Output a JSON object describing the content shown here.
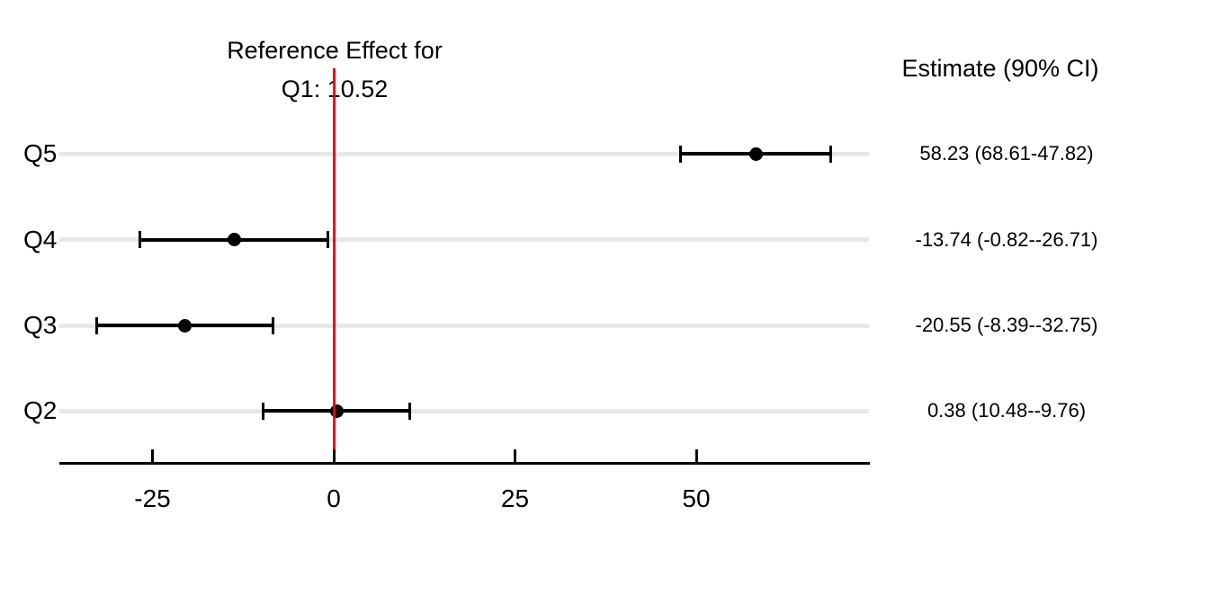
{
  "title": {
    "line1": "Reference Effect for",
    "line2": "Q1: 10.52"
  },
  "right_column_header": "Estimate (90% CI)",
  "chart_data": {
    "type": "forest",
    "title": "Reference Effect for Q1: 10.52",
    "reference": {
      "group": "Q1",
      "effect": 10.52,
      "line_at": 0
    },
    "rows": [
      {
        "label": "Q5",
        "estimate": 58.23,
        "ci_first": 68.61,
        "ci_second": 47.82,
        "display": "58.23 (68.61-47.82)"
      },
      {
        "label": "Q4",
        "estimate": -13.74,
        "ci_first": -0.82,
        "ci_second": -26.71,
        "display": "-13.74 (-0.82--26.71)"
      },
      {
        "label": "Q3",
        "estimate": -20.55,
        "ci_first": -8.39,
        "ci_second": -32.75,
        "display": "-20.55 (-8.39--32.75)"
      },
      {
        "label": "Q2",
        "estimate": 0.38,
        "ci_first": 10.48,
        "ci_second": -9.76,
        "display": "0.38 (10.48--9.76)"
      }
    ],
    "x_ticks": [
      {
        "value": -25,
        "label": "-25"
      },
      {
        "value": 0,
        "label": "0"
      },
      {
        "value": 25,
        "label": "25"
      },
      {
        "value": 50,
        "label": "50"
      }
    ],
    "xlim": [
      -37.8,
      73.8
    ],
    "legend_position": "none",
    "grid": "horizontal-row-lines",
    "colors": {
      "reference_line": "#FF0000",
      "point": "#000000",
      "error_bar": "#000000",
      "gridline": "#E8E8E8",
      "axis": "#000000",
      "text": "#000000"
    }
  }
}
